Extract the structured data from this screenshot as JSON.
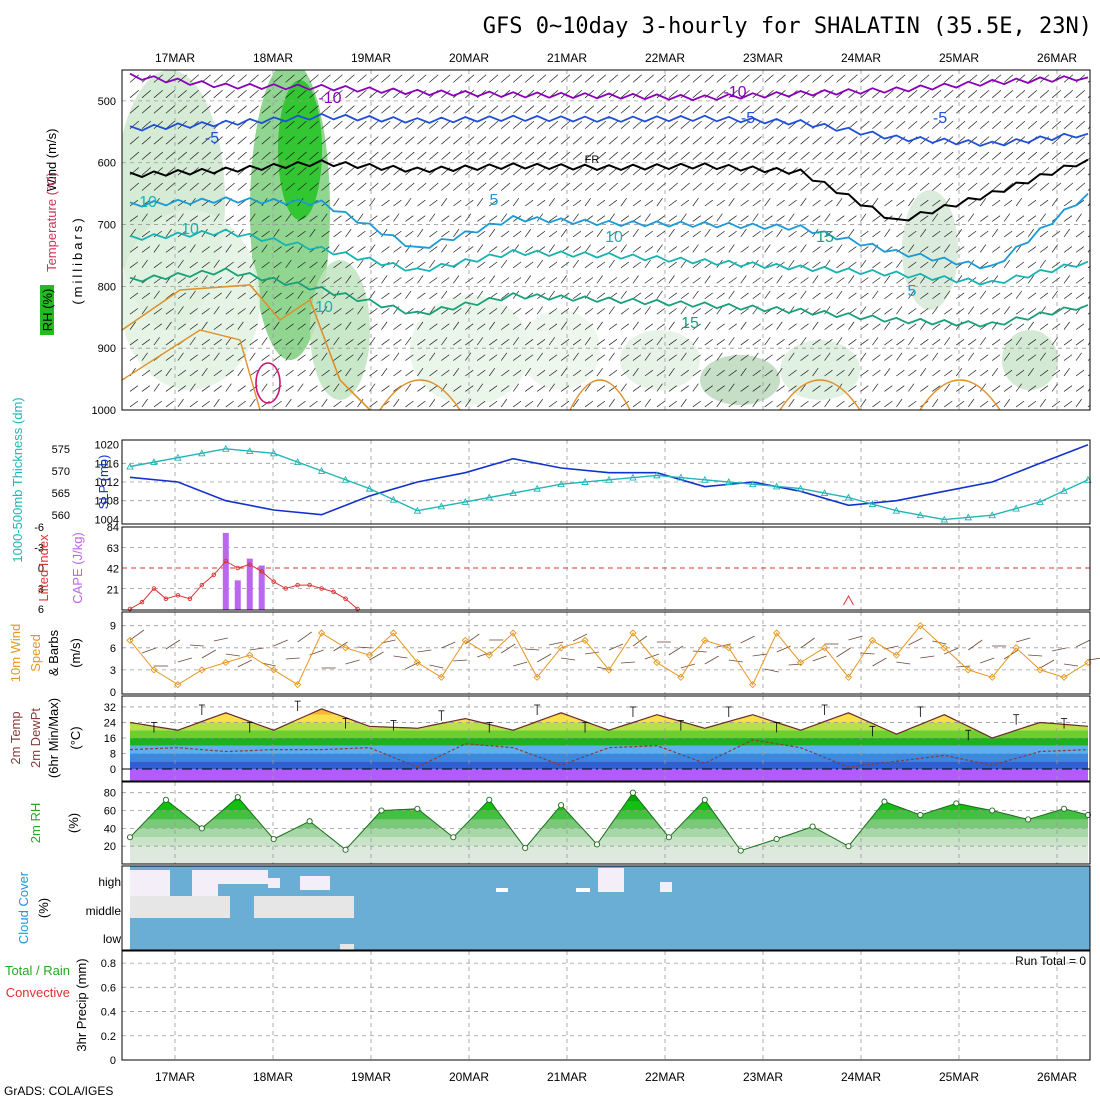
{
  "title": "GFS 0~10day 3-hourly for SHALATIN (35.5E, 23N)",
  "footer": "GrADS: COLA/IGES",
  "run_total": "Run Total = 0",
  "dates": [
    "17MAR",
    "18MAR",
    "19MAR",
    "20MAR",
    "21MAR",
    "22MAR",
    "23MAR",
    "24MAR",
    "25MAR",
    "26MAR"
  ],
  "colors": {
    "wind_fill": "#009900",
    "temp_minus10": "#8a00b8",
    "temp_minus5": "#1f4fd6",
    "temp_freeze": "#000000",
    "temp_5": "#1a9ad6",
    "temp_10": "#16b3b3",
    "temp_15": "#18a07a",
    "temp_warm": "#e0902a",
    "slp": "#1133cc",
    "thickness": "#22b5b5",
    "lifted": "#dd3333",
    "cape": "#bb66ee",
    "wind10": "#e8951f",
    "dewpt": "#8b3a3a",
    "rh": "#22aa22",
    "cloud": "#6aaed6"
  },
  "chart_data": [
    {
      "panel": "upper-air",
      "type": "line",
      "ylabels": [
        "Wind (m/s)",
        "Temperature (°C)",
        "RH (%)",
        "(millibars)"
      ],
      "yticks": [
        500,
        600,
        700,
        800,
        900,
        1000
      ],
      "ylim": [
        1000,
        450
      ],
      "contour_labels": [
        "-10",
        "-10",
        "-5",
        "-5",
        "FR",
        "-5",
        "5",
        "10",
        "10",
        "5",
        "10",
        "15",
        "15",
        "10"
      ],
      "series": [
        {
          "name": "-10",
          "x": [
            0,
            8,
            16,
            24,
            32,
            40,
            48,
            56,
            64,
            72,
            80
          ],
          "values": [
            460,
            476,
            478,
            486,
            490,
            492,
            495,
            488,
            482,
            470,
            462
          ]
        },
        {
          "name": "-5",
          "x": [
            0,
            8,
            16,
            24,
            32,
            40,
            48,
            56,
            64,
            72,
            80
          ],
          "values": [
            545,
            536,
            525,
            532,
            528,
            530,
            528,
            535,
            560,
            570,
            553
          ]
        },
        {
          "name": "FR",
          "x": [
            0,
            8,
            16,
            24,
            32,
            40,
            48,
            56,
            64,
            72,
            80
          ],
          "values": [
            620,
            612,
            600,
            612,
            605,
            608,
            605,
            615,
            695,
            650,
            595
          ]
        },
        {
          "name": "5",
          "x": [
            0,
            8,
            16,
            24,
            32,
            40,
            48,
            56,
            64,
            72,
            80
          ],
          "values": [
            668,
            660,
            665,
            740,
            690,
            698,
            700,
            705,
            745,
            770,
            650
          ]
        },
        {
          "name": "10",
          "x": [
            0,
            8,
            16,
            24,
            32,
            40,
            48,
            56,
            64,
            72,
            80
          ],
          "values": [
            722,
            712,
            740,
            775,
            745,
            750,
            760,
            770,
            780,
            795,
            760
          ]
        },
        {
          "name": "15",
          "x": [
            0,
            8,
            16,
            24,
            32,
            40,
            48,
            56,
            64,
            72,
            80
          ],
          "values": [
            790,
            775,
            805,
            845,
            815,
            822,
            830,
            840,
            855,
            862,
            830
          ]
        }
      ]
    },
    {
      "panel": "slp-thickness",
      "type": "line",
      "ylabels": [
        "1000-500mb Thickness (dm)",
        "SLP (mb)"
      ],
      "yticks_left": [
        "575",
        "570",
        "565",
        "560"
      ],
      "yticks_right": [
        "1020",
        "1016",
        "1012",
        "1008",
        "1004"
      ],
      "series": [
        {
          "name": "SLP (mb)",
          "x": [
            0,
            4,
            8,
            12,
            16,
            20,
            24,
            28,
            32,
            36,
            40,
            44,
            48,
            52,
            56,
            60,
            64,
            68,
            72,
            76,
            80
          ],
          "values": [
            1013,
            1012,
            1008,
            1006,
            1005,
            1009,
            1012,
            1014,
            1017,
            1015,
            1014,
            1014,
            1011,
            1012,
            1010,
            1007,
            1008,
            1010,
            1012,
            1016,
            1020
          ]
        },
        {
          "name": "1000-500mb Thickness (dm)",
          "x": [
            0,
            4,
            8,
            12,
            16,
            20,
            24,
            28,
            32,
            36,
            40,
            44,
            48,
            52,
            56,
            60,
            64,
            68,
            72,
            76,
            80
          ],
          "values": [
            571,
            573,
            575,
            574,
            570,
            566,
            561,
            563,
            565,
            567,
            568,
            569,
            568,
            567,
            566,
            564,
            561,
            559,
            560,
            563,
            568
          ]
        }
      ]
    },
    {
      "panel": "lifted-cape",
      "type": "bar",
      "ylabels": [
        "Lifted Index",
        "CAPE (J/kg)"
      ],
      "yticks_left": [
        "-6",
        "-3",
        "0",
        "3",
        "6"
      ],
      "yticks_right": [
        "84",
        "63",
        "42",
        "21"
      ],
      "series": [
        {
          "name": "Lifted Index",
          "x": [
            0,
            1,
            2,
            3,
            4,
            5,
            6,
            7,
            8,
            9,
            10,
            11,
            12,
            13,
            14,
            15,
            16,
            17,
            18,
            19
          ],
          "values": [
            6,
            5,
            3,
            4.5,
            4,
            4.5,
            2.5,
            1,
            -1,
            0,
            -0.5,
            0.5,
            2,
            3,
            2.5,
            2.5,
            3,
            3.5,
            4.5,
            6
          ]
        },
        {
          "name": "CAPE (J/kg)",
          "x": [
            8,
            9,
            10,
            11
          ],
          "values": [
            78,
            30,
            52,
            45
          ]
        }
      ]
    },
    {
      "panel": "wind10m",
      "type": "line",
      "ylabels": [
        "10m Wind",
        "Speed",
        "& Barbs",
        "(m/s)"
      ],
      "yticks": [
        "9",
        "6",
        "3",
        "0"
      ],
      "series": [
        {
          "name": "Speed",
          "x": [
            0,
            2,
            4,
            6,
            8,
            10,
            12,
            14,
            16,
            18,
            20,
            22,
            24,
            26,
            28,
            30,
            32,
            34,
            36,
            38,
            40,
            42,
            44,
            46,
            48,
            50,
            52,
            54,
            56,
            58,
            60,
            62,
            64,
            66,
            68,
            70,
            72,
            74,
            76,
            78,
            80
          ],
          "values": [
            7,
            3,
            1,
            3,
            4,
            5,
            3,
            1,
            8,
            6,
            5,
            8,
            4,
            2,
            7,
            5,
            8,
            2,
            6,
            7,
            3,
            8,
            4,
            2,
            7,
            6,
            1,
            8,
            4,
            6,
            2,
            7,
            5,
            9,
            6,
            3,
            2,
            6,
            3,
            2,
            4
          ]
        }
      ]
    },
    {
      "panel": "temp-dewpt",
      "type": "area",
      "ylabels": [
        "2m Temp",
        "2m DewPt",
        "(6hr Min/Max)",
        "(°C)"
      ],
      "yticks": [
        "32",
        "24",
        "16",
        "8",
        "0"
      ],
      "series": [
        {
          "name": "2m Temp",
          "x": [
            0,
            4,
            8,
            12,
            16,
            20,
            24,
            28,
            32,
            36,
            40,
            44,
            48,
            52,
            56,
            60,
            64,
            68,
            72,
            76,
            80
          ],
          "values": [
            24,
            20,
            29,
            20,
            31,
            22,
            21,
            26,
            20,
            29,
            20,
            28,
            21,
            28,
            20,
            29,
            18,
            28,
            16,
            24,
            22
          ]
        },
        {
          "name": "2m DewPt",
          "x": [
            0,
            4,
            8,
            12,
            16,
            20,
            24,
            28,
            32,
            36,
            40,
            44,
            48,
            52,
            56,
            60,
            64,
            68,
            72,
            76,
            80
          ],
          "values": [
            10,
            11,
            9,
            10,
            10,
            11,
            1,
            13,
            11,
            2,
            11,
            12,
            3,
            15,
            11,
            1,
            4,
            7,
            2,
            9,
            10
          ]
        }
      ]
    },
    {
      "panel": "rh",
      "type": "area",
      "ylabels": [
        "2m RH",
        "(%)"
      ],
      "yticks": [
        "80",
        "60",
        "40",
        "20"
      ],
      "series": [
        {
          "name": "2m RH",
          "x": [
            0,
            3,
            6,
            9,
            12,
            15,
            18,
            21,
            24,
            27,
            30,
            33,
            36,
            39,
            42,
            45,
            48,
            51,
            54,
            57,
            60,
            63,
            66,
            69,
            72,
            75,
            78,
            80
          ],
          "values": [
            30,
            72,
            40,
            75,
            28,
            48,
            16,
            60,
            62,
            30,
            72,
            18,
            66,
            22,
            80,
            30,
            72,
            15,
            28,
            42,
            20,
            70,
            55,
            68,
            60,
            50,
            62,
            55
          ]
        }
      ]
    },
    {
      "panel": "cloud-cover",
      "type": "heatmap",
      "ylabels": [
        "Cloud Cover",
        "(%)"
      ],
      "rows": [
        "high",
        "middle",
        "low"
      ]
    },
    {
      "panel": "precip",
      "type": "bar",
      "ylabels": [
        "Total / Rain",
        "Convective",
        "3hr Precip (mm)"
      ],
      "yticks": [
        "0.8",
        "0.6",
        "0.4",
        "0.2",
        "0"
      ],
      "ylim": [
        0,
        0.9
      ],
      "values": []
    }
  ]
}
